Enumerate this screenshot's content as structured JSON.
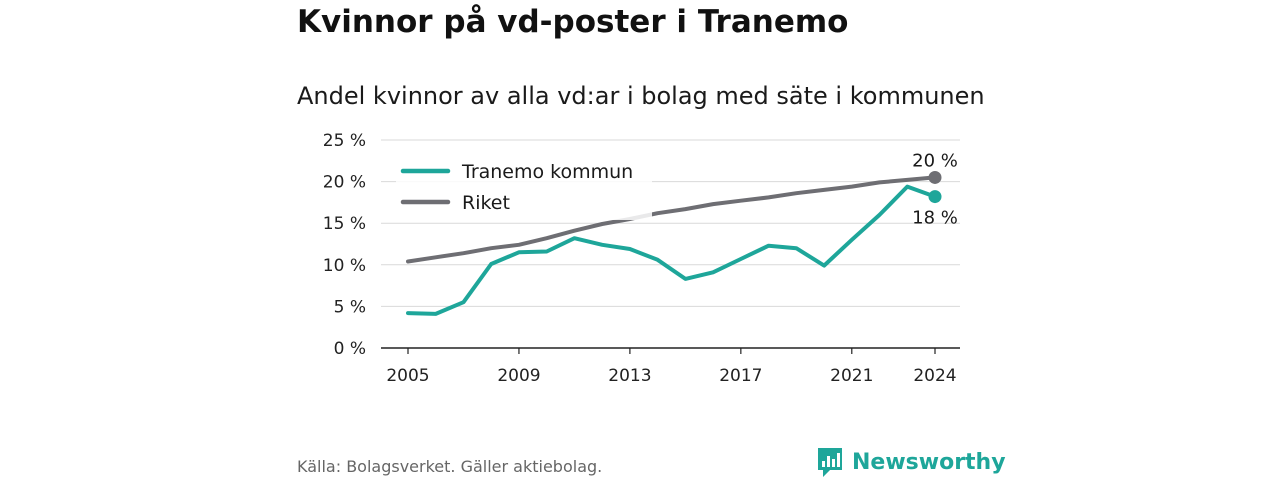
{
  "title": "Kvinnor på vd-poster i Tranemo",
  "subtitle": "Andel kvinnor av alla vd:ar i bolag med säte i kommunen",
  "source": "Källa: Bolagsverket. Gäller aktiebolag.",
  "brand": {
    "name": "Newsworthy",
    "icon": "bar-chart-speech-bubble-icon",
    "color": "#1ea69a"
  },
  "chart_data": {
    "type": "line",
    "title": "Kvinnor på vd-poster i Tranemo",
    "subtitle": "Andel kvinnor av alla vd:ar i bolag med säte i kommunen",
    "xlabel": "",
    "ylabel": "",
    "x_ticks": [
      "2005",
      "2009",
      "2013",
      "2017",
      "2021",
      "2024"
    ],
    "y_ticks": [
      "0 %",
      "5 %",
      "10 %",
      "15 %",
      "20 %",
      "25 %"
    ],
    "ylim": [
      0,
      25
    ],
    "xlim": [
      2005,
      2024
    ],
    "grid": true,
    "legend": "top-left",
    "x": [
      2005,
      2006,
      2007,
      2008,
      2009,
      2010,
      2011,
      2012,
      2013,
      2014,
      2015,
      2016,
      2017,
      2018,
      2019,
      2020,
      2021,
      2022,
      2023,
      2024
    ],
    "series": [
      {
        "name": "Tranemo kommun",
        "color": "#1ea69a",
        "values": [
          4.2,
          4.1,
          5.5,
          10.1,
          11.5,
          11.6,
          13.2,
          12.4,
          11.9,
          10.6,
          8.3,
          9.1,
          10.7,
          12.3,
          12.0,
          9.9,
          13.0,
          16.0,
          19.4,
          18.2
        ],
        "end_label": "18 %"
      },
      {
        "name": "Riket",
        "color": "#6e6e73",
        "values": [
          10.4,
          10.9,
          11.4,
          12.0,
          12.4,
          13.2,
          14.1,
          14.9,
          15.5,
          16.2,
          16.7,
          17.3,
          17.7,
          18.1,
          18.6,
          19.0,
          19.4,
          19.9,
          20.2,
          20.5
        ],
        "end_label": "20 %"
      }
    ]
  }
}
